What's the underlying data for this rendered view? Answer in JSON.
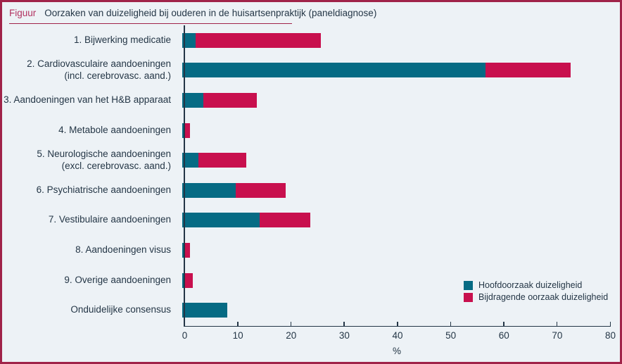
{
  "title": {
    "label": "Figuur",
    "text": "Oorzaken van duizeligheid bij ouderen in de huisartsenpraktijk (paneldiagnose)"
  },
  "colors": {
    "main_cause": "#066b84",
    "contributing_cause": "#c8104e",
    "frame_border": "#a02349",
    "title_accent": "#b23260",
    "background": "#edf2f6",
    "text": "#243646",
    "axis": "#243646"
  },
  "chart_data": {
    "type": "bar",
    "orientation": "horizontal",
    "stacked": true,
    "title": "Oorzaken van duizeligheid bij ouderen in de huisartsenpraktijk (paneldiagnose)",
    "xlabel": "%",
    "xlim": [
      0,
      80
    ],
    "xticks": [
      0,
      10,
      20,
      30,
      40,
      50,
      60,
      70,
      80
    ],
    "grid": false,
    "legend_position": "inside-bottom-right",
    "categories": [
      {
        "label": "1. Bijwerking medicatie",
        "sub": ""
      },
      {
        "label": "2. Cardiovasculaire aandoeningen",
        "sub": "(incl. cerebrovasc. aand.)"
      },
      {
        "label": "3. Aandoeningen van het H&B apparaat",
        "sub": ""
      },
      {
        "label": "4. Metabole aandoeningen",
        "sub": ""
      },
      {
        "label": "5. Neurologische aandoeningen",
        "sub": "(excl. cerebrovasc. aand.)"
      },
      {
        "label": "6. Psychiatrische aandoeningen",
        "sub": ""
      },
      {
        "label": "7. Vestibulaire aandoeningen",
        "sub": ""
      },
      {
        "label": "8. Aandoeningen visus",
        "sub": ""
      },
      {
        "label": "9. Overige aandoeningen",
        "sub": ""
      },
      {
        "label": "Onduidelijke consensus",
        "sub": ""
      }
    ],
    "series": [
      {
        "name": "Hoofdoorzaak duizeligheid",
        "color": "#066b84",
        "values": [
          2.5,
          57,
          4,
          0.5,
          3,
          10,
          14.5,
          0.5,
          0.5,
          8.5
        ]
      },
      {
        "name": "Bijdragende oorzaak duizeligheid",
        "color": "#c8104e",
        "values": [
          23.5,
          16,
          10,
          1,
          9,
          9.5,
          9.5,
          1,
          1.5,
          0
        ]
      }
    ]
  }
}
